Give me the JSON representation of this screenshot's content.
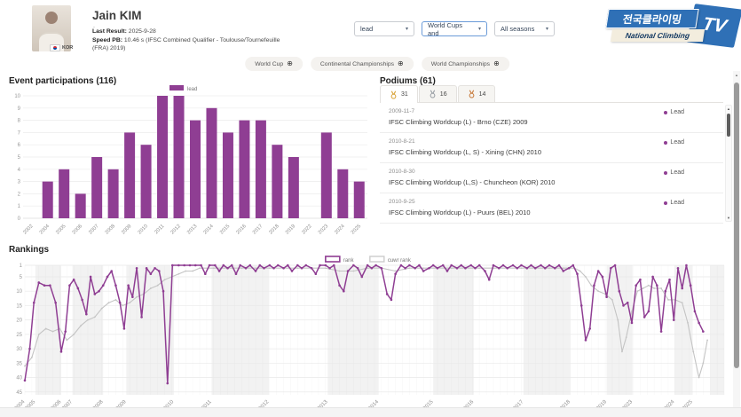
{
  "header": {
    "name": "Jain KIM",
    "note": ".",
    "country_code": "KOR",
    "last_result_label": "Last Result:",
    "last_result_value": "2025-9-28",
    "speed_pb_label": "Speed PB:",
    "speed_pb_value": "10.46 s (IFSC Combined Qualifier - Toulouse/Tournefeuille (FRA) 2019)",
    "filters": [
      {
        "value": "lead"
      },
      {
        "value": "World Cups and"
      },
      {
        "value": "All seasons"
      }
    ]
  },
  "logo": {
    "korean": "전국클라이밍",
    "english": "National Climbing",
    "tv": "TV"
  },
  "category_pills": [
    "World Cup",
    "Continental Championships",
    "World Championships"
  ],
  "icons": {
    "add_filter": "⊕",
    "chevron": "▾",
    "scroll_up": "▲",
    "scroll_down": "▼"
  },
  "participations": {
    "title": "Event participations (116)"
  },
  "podiums": {
    "title": "Podiums (61)",
    "tabs": [
      {
        "medal": "gold",
        "count": "31"
      },
      {
        "medal": "silver",
        "count": "16"
      },
      {
        "medal": "bronze",
        "count": "14"
      }
    ],
    "items": [
      {
        "date": "2009-11-7",
        "title": "IFSC Climbing Worldcup (L) - Brno (CZE) 2009",
        "badge": "Lead"
      },
      {
        "date": "2010-8-21",
        "title": "IFSC Climbing Worldcup (L, S) - Xining (CHN) 2010",
        "badge": "Lead"
      },
      {
        "date": "2010-8-30",
        "title": "IFSC Climbing Worldcup (L,S) - Chuncheon (KOR) 2010",
        "badge": "Lead"
      },
      {
        "date": "2010-9-25",
        "title": "IFSC Climbing Worldcup (L) - Puurs (BEL) 2010",
        "badge": "Lead"
      }
    ]
  },
  "rankings": {
    "title": "Rankings"
  },
  "colors": {
    "accent_purple": "#8f3e93",
    "cuwr_gray": "#c4c4c4",
    "gold": "#d9a43b",
    "silver": "#9aa0a6",
    "bronze": "#c87c3e",
    "logo_blue": "#2f70b6",
    "select_focus_blue": "#6b9bd8"
  },
  "chart_data": [
    {
      "type": "bar",
      "title": "Event participations (116)",
      "series_label": "lead",
      "color_key": "accent_purple",
      "categories": [
        "2002",
        "2004",
        "2005",
        "2006",
        "2007",
        "2008",
        "2009",
        "2010",
        "2011",
        "2012",
        "2013",
        "2014",
        "2015",
        "2016",
        "2017",
        "2018",
        "2019",
        "2022",
        "2023",
        "2024",
        "2025"
      ],
      "values": [
        0,
        3,
        4,
        2,
        5,
        4,
        7,
        6,
        10,
        10,
        8,
        9,
        7,
        8,
        8,
        6,
        5,
        0,
        7,
        4,
        3
      ],
      "xlabel": "",
      "ylabel": "",
      "ylim": [
        0,
        10
      ],
      "grid": true,
      "legend_position": "top-center"
    },
    {
      "type": "line",
      "title": "Rankings",
      "y_inverted": true,
      "ylim": [
        1,
        46
      ],
      "yticks": [
        1,
        5,
        10,
        15,
        20,
        25,
        30,
        35,
        40,
        45
      ],
      "grid": true,
      "legend_position": "top-center",
      "xticks": [
        {
          "label": "2004",
          "pct": 0
        },
        {
          "label": "2005",
          "pct": 1.5
        },
        {
          "label": "2006",
          "pct": 5.2
        },
        {
          "label": "2007",
          "pct": 6.8
        },
        {
          "label": "2008",
          "pct": 11.2
        },
        {
          "label": "2009",
          "pct": 14.5
        },
        {
          "label": "2010",
          "pct": 21.3
        },
        {
          "label": "2011",
          "pct": 26.7
        },
        {
          "label": "2012",
          "pct": 34.9
        },
        {
          "label": "2013",
          "pct": 43.3
        },
        {
          "label": "2014",
          "pct": 50.6
        },
        {
          "label": "2015",
          "pct": 58.4
        },
        {
          "label": "2016",
          "pct": 64.2
        },
        {
          "label": "2017",
          "pct": 71.3
        },
        {
          "label": "2018",
          "pct": 78.0
        },
        {
          "label": "2019",
          "pct": 83.2
        },
        {
          "label": "2023",
          "pct": 86.9
        },
        {
          "label": "2024",
          "pct": 92.9
        },
        {
          "label": "2025",
          "pct": 95.5
        }
      ],
      "series": [
        {
          "name": "rank",
          "color_key": "accent_purple",
          "points": [
            [
              0,
              41
            ],
            [
              0.7,
              30
            ],
            [
              1.3,
              14
            ],
            [
              2,
              7
            ],
            [
              2.8,
              8
            ],
            [
              3.6,
              8
            ],
            [
              4.4,
              14
            ],
            [
              5.2,
              31
            ],
            [
              5.8,
              24
            ],
            [
              6.4,
              8
            ],
            [
              7,
              6
            ],
            [
              7.6,
              9
            ],
            [
              8.2,
              13
            ],
            [
              8.8,
              18
            ],
            [
              9.4,
              5
            ],
            [
              10,
              11
            ],
            [
              10.6,
              10
            ],
            [
              11.2,
              8
            ],
            [
              11.8,
              5
            ],
            [
              12.4,
              3
            ],
            [
              13,
              8
            ],
            [
              13.6,
              14
            ],
            [
              14.2,
              23
            ],
            [
              14.8,
              8
            ],
            [
              15.4,
              12
            ],
            [
              16,
              2
            ],
            [
              16.7,
              19
            ],
            [
              17.4,
              2
            ],
            [
              18,
              4
            ],
            [
              18.6,
              2
            ],
            [
              19.2,
              3
            ],
            [
              19.8,
              10
            ],
            [
              20.4,
              42
            ],
            [
              21.1,
              1
            ],
            [
              22,
              1
            ],
            [
              22.8,
              1
            ],
            [
              23.6,
              1
            ],
            [
              24.4,
              1
            ],
            [
              25.2,
              1
            ],
            [
              25.8,
              4
            ],
            [
              26.4,
              1
            ],
            [
              27.2,
              1
            ],
            [
              27.8,
              3
            ],
            [
              28.4,
              1
            ],
            [
              29,
              2
            ],
            [
              29.6,
              1
            ],
            [
              30.2,
              4
            ],
            [
              30.8,
              1
            ],
            [
              31.6,
              2
            ],
            [
              32.2,
              1
            ],
            [
              33,
              3
            ],
            [
              33.6,
              1
            ],
            [
              34.2,
              2
            ],
            [
              35,
              1
            ],
            [
              35.6,
              2
            ],
            [
              36.2,
              1
            ],
            [
              37,
              2
            ],
            [
              37.6,
              1
            ],
            [
              38.2,
              3
            ],
            [
              39,
              1
            ],
            [
              39.6,
              2
            ],
            [
              40.2,
              1
            ],
            [
              41,
              2
            ],
            [
              41.6,
              4
            ],
            [
              42.2,
              1
            ],
            [
              43,
              1
            ],
            [
              43.6,
              2
            ],
            [
              44.2,
              1
            ],
            [
              45,
              8
            ],
            [
              45.6,
              10
            ],
            [
              46.2,
              3
            ],
            [
              47,
              1
            ],
            [
              47.6,
              2
            ],
            [
              48.2,
              5
            ],
            [
              49,
              1
            ],
            [
              49.6,
              2
            ],
            [
              50.2,
              1
            ],
            [
              51,
              2
            ],
            [
              51.8,
              11
            ],
            [
              52.4,
              13
            ],
            [
              53,
              4
            ],
            [
              53.8,
              1
            ],
            [
              54.4,
              2
            ],
            [
              55,
              1
            ],
            [
              55.8,
              2
            ],
            [
              56.4,
              1
            ],
            [
              57,
              3
            ],
            [
              57.8,
              2
            ],
            [
              58.4,
              1
            ],
            [
              59,
              2
            ],
            [
              59.8,
              1
            ],
            [
              60.4,
              3
            ],
            [
              61,
              1
            ],
            [
              61.8,
              2
            ],
            [
              62.4,
              1
            ],
            [
              63,
              2
            ],
            [
              63.8,
              1
            ],
            [
              64.4,
              2
            ],
            [
              65,
              1
            ],
            [
              65.8,
              3
            ],
            [
              66.4,
              6
            ],
            [
              67,
              1
            ],
            [
              67.8,
              2
            ],
            [
              68.4,
              1
            ],
            [
              69,
              2
            ],
            [
              69.8,
              1
            ],
            [
              70.4,
              2
            ],
            [
              71,
              1
            ],
            [
              71.8,
              2
            ],
            [
              72.4,
              1
            ],
            [
              73,
              2
            ],
            [
              73.8,
              1
            ],
            [
              74.4,
              2
            ],
            [
              75,
              1
            ],
            [
              75.8,
              2
            ],
            [
              76.4,
              1
            ],
            [
              77,
              3
            ],
            [
              77.8,
              2
            ],
            [
              78.4,
              1
            ],
            [
              79,
              4
            ],
            [
              79.6,
              15
            ],
            [
              80.2,
              27
            ],
            [
              80.8,
              23
            ],
            [
              81.4,
              8
            ],
            [
              82,
              3
            ],
            [
              82.6,
              5
            ],
            [
              83.2,
              12
            ],
            [
              83.8,
              2
            ],
            [
              84.4,
              1
            ],
            [
              85,
              10
            ],
            [
              85.6,
              15
            ],
            [
              86.2,
              14
            ],
            [
              86.8,
              21
            ],
            [
              87.4,
              8
            ],
            [
              88,
              6
            ],
            [
              88.6,
              19
            ],
            [
              89.2,
              17
            ],
            [
              89.8,
              5
            ],
            [
              90.4,
              8
            ],
            [
              91,
              24
            ],
            [
              91.6,
              10
            ],
            [
              92.2,
              6
            ],
            [
              92.8,
              20
            ],
            [
              93.4,
              2
            ],
            [
              94,
              9
            ],
            [
              94.6,
              1
            ],
            [
              95.2,
              8
            ],
            [
              95.8,
              17
            ],
            [
              96.4,
              21
            ],
            [
              97,
              24
            ]
          ]
        },
        {
          "name": "cuwr rank",
          "color_key": "cuwr_gray",
          "points": [
            [
              0,
              36
            ],
            [
              1,
              33
            ],
            [
              2,
              25
            ],
            [
              3,
              23
            ],
            [
              4,
              24
            ],
            [
              5,
              23
            ],
            [
              6,
              27
            ],
            [
              7,
              25
            ],
            [
              8,
              22
            ],
            [
              9,
              20
            ],
            [
              10,
              19
            ],
            [
              11,
              16
            ],
            [
              12,
              14
            ],
            [
              13,
              13
            ],
            [
              14,
              15
            ],
            [
              15,
              14
            ],
            [
              16,
              12
            ],
            [
              17,
              11
            ],
            [
              18,
              9
            ],
            [
              19,
              8
            ],
            [
              20,
              6
            ],
            [
              21,
              5
            ],
            [
              22,
              4
            ],
            [
              23,
              3
            ],
            [
              24,
              3
            ],
            [
              25,
              2
            ],
            [
              27,
              2
            ],
            [
              29,
              2
            ],
            [
              31,
              2
            ],
            [
              33,
              2
            ],
            [
              35,
              2
            ],
            [
              37,
              2
            ],
            [
              39,
              2
            ],
            [
              41,
              2
            ],
            [
              43,
              2
            ],
            [
              45,
              3
            ],
            [
              47,
              3
            ],
            [
              49,
              2
            ],
            [
              51,
              2
            ],
            [
              53,
              3
            ],
            [
              55,
              2
            ],
            [
              57,
              2
            ],
            [
              59,
              2
            ],
            [
              61,
              2
            ],
            [
              63,
              2
            ],
            [
              65,
              2
            ],
            [
              67,
              2
            ],
            [
              69,
              2
            ],
            [
              71,
              2
            ],
            [
              73,
              2
            ],
            [
              75,
              2
            ],
            [
              77,
              2
            ],
            [
              78.6,
              2
            ],
            [
              79.4,
              3
            ],
            [
              80.2,
              5
            ],
            [
              81,
              8
            ],
            [
              82,
              10
            ],
            [
              83,
              11
            ],
            [
              84,
              13
            ],
            [
              84.8,
              20
            ],
            [
              85.4,
              31
            ],
            [
              86,
              26
            ],
            [
              86.8,
              17
            ],
            [
              87.6,
              10
            ],
            [
              88.4,
              9
            ],
            [
              89.2,
              8
            ],
            [
              90,
              9
            ],
            [
              91,
              9
            ],
            [
              92,
              13
            ],
            [
              93,
              13
            ],
            [
              94,
              14
            ],
            [
              94.8,
              21
            ],
            [
              95.6,
              31
            ],
            [
              96.4,
              40
            ],
            [
              97,
              35
            ],
            [
              97.6,
              27
            ]
          ]
        }
      ]
    }
  ]
}
